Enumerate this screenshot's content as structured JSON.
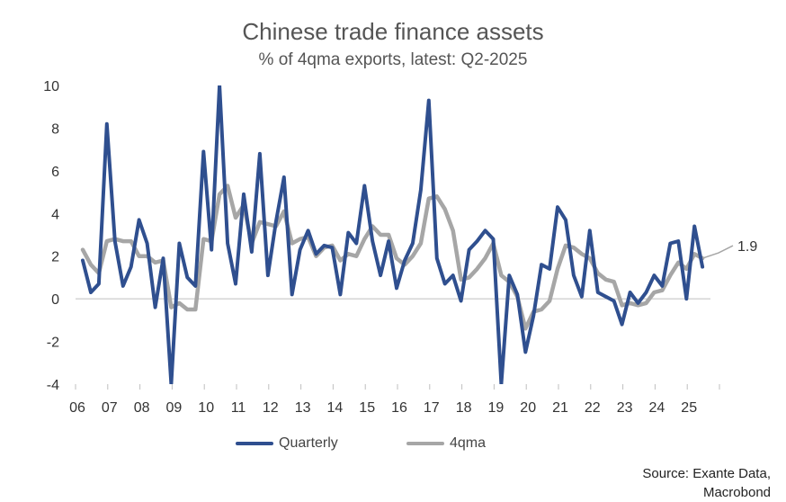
{
  "chart_data": {
    "type": "line",
    "title": "Chinese trade finance assets",
    "subtitle": "% of 4qma exports, latest: Q2-2025",
    "ylim": [
      -4,
      10
    ],
    "yticks": [
      -4,
      -2,
      0,
      2,
      4,
      6,
      8,
      10
    ],
    "xtick_labels": [
      "06",
      "07",
      "08",
      "09",
      "10",
      "11",
      "12",
      "13",
      "14",
      "15",
      "16",
      "17",
      "18",
      "19",
      "20",
      "21",
      "22",
      "23",
      "24",
      "25"
    ],
    "start": "2006Q1",
    "series": [
      {
        "name": "Quarterly",
        "color": "#2f4f8f",
        "values": [
          1.8,
          0.3,
          0.7,
          8.2,
          2.7,
          0.6,
          1.5,
          3.7,
          2.6,
          -0.4,
          1.9,
          -4.0,
          2.6,
          1.0,
          0.6,
          6.9,
          2.3,
          10.0,
          2.6,
          0.7,
          4.9,
          2.2,
          6.8,
          1.1,
          3.6,
          5.7,
          0.2,
          2.3,
          3.2,
          2.1,
          2.5,
          2.4,
          0.2,
          3.1,
          2.6,
          5.3,
          2.7,
          1.1,
          2.7,
          0.5,
          1.8,
          2.6,
          5.1,
          9.3,
          1.9,
          0.7,
          1.1,
          -0.1,
          2.3,
          2.7,
          3.2,
          2.8,
          -4.0,
          1.1,
          0.2,
          -2.5,
          -0.8,
          1.6,
          1.4,
          4.3,
          3.7,
          1.1,
          0.1,
          3.2,
          0.3,
          0.1,
          -0.1,
          -1.2,
          0.3,
          -0.2,
          0.3,
          1.1,
          0.6,
          2.6,
          2.7,
          0.0,
          3.4,
          1.5
        ]
      },
      {
        "name": "4qma",
        "color": "#a6a6a6",
        "values": [
          2.3,
          1.6,
          1.2,
          2.7,
          2.8,
          2.7,
          2.7,
          2.0,
          2.0,
          1.7,
          1.8,
          -0.4,
          -0.2,
          -0.5,
          -0.5,
          2.8,
          2.7,
          4.9,
          5.3,
          3.8,
          4.4,
          2.6,
          3.6,
          3.5,
          3.4,
          4.1,
          2.6,
          2.8,
          2.9,
          2.0,
          2.4,
          2.5,
          1.8,
          2.1,
          2.0,
          2.8,
          3.4,
          3.0,
          3.0,
          1.9,
          1.6,
          2.0,
          2.6,
          4.7,
          4.8,
          4.2,
          3.2,
          0.9,
          1.0,
          1.4,
          1.9,
          2.6,
          1.1,
          0.8,
          0.1,
          -1.4,
          -0.6,
          -0.5,
          -0.1,
          1.4,
          2.5,
          2.4,
          2.1,
          1.9,
          1.2,
          0.9,
          0.8,
          -0.3,
          -0.2,
          -0.3,
          -0.2,
          0.3,
          0.4,
          1.1,
          1.7,
          1.4,
          2.1,
          1.9
        ]
      }
    ],
    "end_label": "1.9",
    "legend": [
      "Quarterly",
      "4qma"
    ],
    "legend_position": "bottom"
  },
  "source": {
    "line1": "Source: Exante Data,",
    "line2": "Macrobond"
  }
}
